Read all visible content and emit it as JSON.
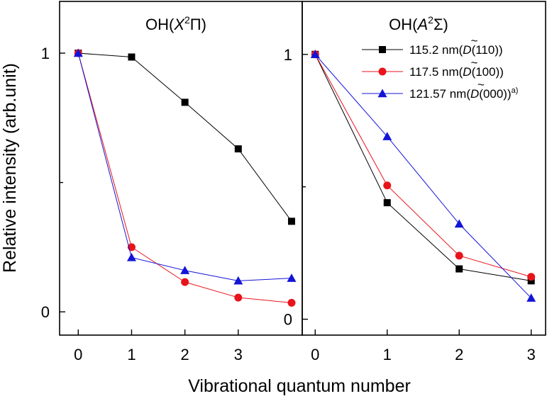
{
  "chart_data": {
    "type": "line",
    "ylabel": "Relative intensity (arb.unit)",
    "xlabel": "Vibrational quantum number",
    "legend": {
      "placement": "top-right of right panel",
      "entries": [
        {
          "wavelength": "115.2 nm(",
          "state": "D",
          "level": "(110))",
          "sup": ""
        },
        {
          "wavelength": "117.5 nm(",
          "state": "D",
          "level": "(100))",
          "sup": ""
        },
        {
          "wavelength": "121.57 nm(",
          "state": "D",
          "level": "(000))",
          "sup": "a)"
        }
      ]
    },
    "panels": [
      {
        "id": "left",
        "title": "OH(X²Π)",
        "title_parts": {
          "prefix": "OH(",
          "symbol": "X",
          "sup": "2",
          "suffix": "Π)"
        },
        "x_ticks": [
          "0",
          "1",
          "2",
          "3"
        ],
        "y_tick_labels": {
          "top": "1",
          "bottom": "0"
        },
        "xlim": [
          -0.35,
          4.2
        ],
        "ylim": [
          -0.09,
          1.2
        ],
        "series": [
          {
            "name": "115.2 nm",
            "color": "#000000",
            "marker": "square",
            "x": [
              0,
              1,
              2,
              3,
              4
            ],
            "y": [
              1.0,
              0.985,
              0.81,
              0.63,
              0.35
            ]
          },
          {
            "name": "117.5 nm",
            "color": "#e8141b",
            "marker": "circle",
            "x": [
              0,
              1,
              2,
              3,
              4
            ],
            "y": [
              1.0,
              0.25,
              0.115,
              0.055,
              0.035
            ]
          },
          {
            "name": "121.57 nm",
            "color": "#1414d8",
            "marker": "triangle",
            "x": [
              0,
              1,
              2,
              3,
              4
            ],
            "y": [
              1.0,
              0.21,
              0.16,
              0.12,
              0.13
            ]
          }
        ]
      },
      {
        "id": "right",
        "title": "OH(A²Σ)",
        "title_parts": {
          "prefix": "OH(",
          "symbol": "A",
          "sup": "2",
          "suffix": "Σ)"
        },
        "x_ticks": [
          "0",
          "1",
          "2",
          "3"
        ],
        "y_tick_labels": {
          "top": "1",
          "bottom": "0"
        },
        "xlim": [
          -0.18,
          3.2
        ],
        "ylim": [
          -0.06,
          1.2
        ],
        "series": [
          {
            "name": "115.2 nm",
            "color": "#000000",
            "marker": "square",
            "x": [
              0,
              1,
              2,
              3
            ],
            "y": [
              1.0,
              0.44,
              0.19,
              0.145
            ]
          },
          {
            "name": "117.5 nm",
            "color": "#e8141b",
            "marker": "circle",
            "x": [
              0,
              1,
              2,
              3
            ],
            "y": [
              1.0,
              0.505,
              0.24,
              0.16
            ]
          },
          {
            "name": "121.57 nm",
            "color": "#1414d8",
            "marker": "triangle",
            "x": [
              0,
              1,
              2,
              3
            ],
            "y": [
              1.0,
              0.69,
              0.36,
              0.08
            ]
          }
        ]
      }
    ]
  }
}
